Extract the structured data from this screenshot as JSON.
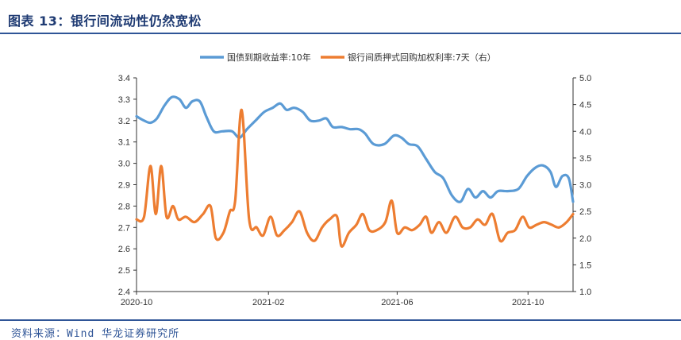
{
  "header": {
    "title": "图表 13：银行间流动性仍然宽松"
  },
  "footer": {
    "source": "资料来源：Wind 华龙证券研究所"
  },
  "chart_data": {
    "type": "line",
    "x_ticks": [
      "2020-10",
      "2021-02",
      "2021-06",
      "2021-10"
    ],
    "y_left": {
      "ylim": [
        2.4,
        3.4
      ],
      "ticks": [
        "3.4",
        "3.3",
        "3.2",
        "3.1",
        "3.0",
        "2.9",
        "2.8",
        "2.7",
        "2.6",
        "2.5",
        "2.4"
      ]
    },
    "y_right": {
      "ylim": [
        1.0,
        5.0
      ],
      "ticks": [
        "5.0",
        "4.5",
        "4.0",
        "3.5",
        "3.0",
        "2.5",
        "2.0",
        "1.5",
        "1.0"
      ]
    },
    "x_range": [
      "2020-10-01",
      "2021-11-12"
    ],
    "series": [
      {
        "name": "国债到期收益率:10年",
        "axis": "left",
        "color": "#5b9bd5",
        "points": [
          [
            "2020-10-01",
            3.22
          ],
          [
            "2020-10-08",
            3.2
          ],
          [
            "2020-10-14",
            3.19
          ],
          [
            "2020-10-20",
            3.21
          ],
          [
            "2020-10-27",
            3.27
          ],
          [
            "2020-11-03",
            3.31
          ],
          [
            "2020-11-10",
            3.3
          ],
          [
            "2020-11-16",
            3.26
          ],
          [
            "2020-11-22",
            3.29
          ],
          [
            "2020-11-29",
            3.29
          ],
          [
            "2020-12-05",
            3.22
          ],
          [
            "2020-12-12",
            3.15
          ],
          [
            "2020-12-20",
            3.15
          ],
          [
            "2020-12-29",
            3.15
          ],
          [
            "2021-01-05",
            3.12
          ],
          [
            "2021-01-12",
            3.16
          ],
          [
            "2021-01-20",
            3.2
          ],
          [
            "2021-01-28",
            3.24
          ],
          [
            "2021-02-05",
            3.26
          ],
          [
            "2021-02-12",
            3.28
          ],
          [
            "2021-02-18",
            3.25
          ],
          [
            "2021-02-25",
            3.26
          ],
          [
            "2021-03-05",
            3.24
          ],
          [
            "2021-03-12",
            3.2
          ],
          [
            "2021-03-20",
            3.2
          ],
          [
            "2021-03-27",
            3.21
          ],
          [
            "2021-04-02",
            3.17
          ],
          [
            "2021-04-10",
            3.17
          ],
          [
            "2021-04-18",
            3.16
          ],
          [
            "2021-04-26",
            3.16
          ],
          [
            "2021-05-02",
            3.14
          ],
          [
            "2021-05-10",
            3.09
          ],
          [
            "2021-05-20",
            3.09
          ],
          [
            "2021-05-29",
            3.13
          ],
          [
            "2021-06-05",
            3.12
          ],
          [
            "2021-06-12",
            3.09
          ],
          [
            "2021-06-20",
            3.08
          ],
          [
            "2021-06-28",
            3.02
          ],
          [
            "2021-07-06",
            2.96
          ],
          [
            "2021-07-14",
            2.93
          ],
          [
            "2021-07-22",
            2.85
          ],
          [
            "2021-07-30",
            2.82
          ],
          [
            "2021-08-06",
            2.88
          ],
          [
            "2021-08-13",
            2.84
          ],
          [
            "2021-08-20",
            2.87
          ],
          [
            "2021-08-27",
            2.84
          ],
          [
            "2021-09-03",
            2.87
          ],
          [
            "2021-09-12",
            2.87
          ],
          [
            "2021-09-22",
            2.88
          ],
          [
            "2021-09-30",
            2.94
          ],
          [
            "2021-10-08",
            2.98
          ],
          [
            "2021-10-15",
            2.99
          ],
          [
            "2021-10-22",
            2.96
          ],
          [
            "2021-10-27",
            2.89
          ],
          [
            "2021-11-02",
            2.94
          ],
          [
            "2021-11-08",
            2.93
          ],
          [
            "2021-11-12",
            2.82
          ]
        ]
      },
      {
        "name": "银行间质押式回购加权利率:7天（右）",
        "axis": "right",
        "color": "#ed7d31",
        "points": [
          [
            "2020-10-01",
            2.35
          ],
          [
            "2020-10-08",
            2.4
          ],
          [
            "2020-10-14",
            3.35
          ],
          [
            "2020-10-19",
            2.45
          ],
          [
            "2020-10-24",
            3.35
          ],
          [
            "2020-10-29",
            2.4
          ],
          [
            "2020-11-04",
            2.6
          ],
          [
            "2020-11-09",
            2.35
          ],
          [
            "2020-11-16",
            2.4
          ],
          [
            "2020-11-24",
            2.3
          ],
          [
            "2020-12-02",
            2.45
          ],
          [
            "2020-12-09",
            2.6
          ],
          [
            "2020-12-14",
            2.0
          ],
          [
            "2020-12-21",
            2.1
          ],
          [
            "2020-12-27",
            2.5
          ],
          [
            "2021-01-01",
            2.7
          ],
          [
            "2021-01-07",
            4.4
          ],
          [
            "2021-01-14",
            2.35
          ],
          [
            "2021-01-21",
            2.2
          ],
          [
            "2021-01-27",
            2.05
          ],
          [
            "2021-02-03",
            2.4
          ],
          [
            "2021-02-09",
            2.05
          ],
          [
            "2021-02-16",
            2.15
          ],
          [
            "2021-02-23",
            2.3
          ],
          [
            "2021-03-02",
            2.5
          ],
          [
            "2021-03-09",
            2.1
          ],
          [
            "2021-03-16",
            1.95
          ],
          [
            "2021-03-23",
            2.2
          ],
          [
            "2021-03-30",
            2.35
          ],
          [
            "2021-04-06",
            2.4
          ],
          [
            "2021-04-10",
            1.85
          ],
          [
            "2021-04-17",
            2.1
          ],
          [
            "2021-04-24",
            2.25
          ],
          [
            "2021-04-30",
            2.45
          ],
          [
            "2021-05-06",
            2.15
          ],
          [
            "2021-05-13",
            2.15
          ],
          [
            "2021-05-21",
            2.3
          ],
          [
            "2021-05-27",
            2.7
          ],
          [
            "2021-06-01",
            2.1
          ],
          [
            "2021-06-08",
            2.2
          ],
          [
            "2021-06-15",
            2.15
          ],
          [
            "2021-06-22",
            2.25
          ],
          [
            "2021-06-28",
            2.4
          ],
          [
            "2021-07-03",
            2.1
          ],
          [
            "2021-07-10",
            2.3
          ],
          [
            "2021-07-17",
            2.1
          ],
          [
            "2021-07-25",
            2.4
          ],
          [
            "2021-08-01",
            2.2
          ],
          [
            "2021-08-08",
            2.2
          ],
          [
            "2021-08-15",
            2.35
          ],
          [
            "2021-08-22",
            2.25
          ],
          [
            "2021-08-29",
            2.45
          ],
          [
            "2021-09-05",
            1.95
          ],
          [
            "2021-09-12",
            2.1
          ],
          [
            "2021-09-19",
            2.15
          ],
          [
            "2021-09-26",
            2.4
          ],
          [
            "2021-10-02",
            2.2
          ],
          [
            "2021-10-09",
            2.25
          ],
          [
            "2021-10-16",
            2.3
          ],
          [
            "2021-10-23",
            2.25
          ],
          [
            "2021-10-30",
            2.2
          ],
          [
            "2021-11-06",
            2.3
          ],
          [
            "2021-11-12",
            2.45
          ]
        ]
      }
    ]
  }
}
